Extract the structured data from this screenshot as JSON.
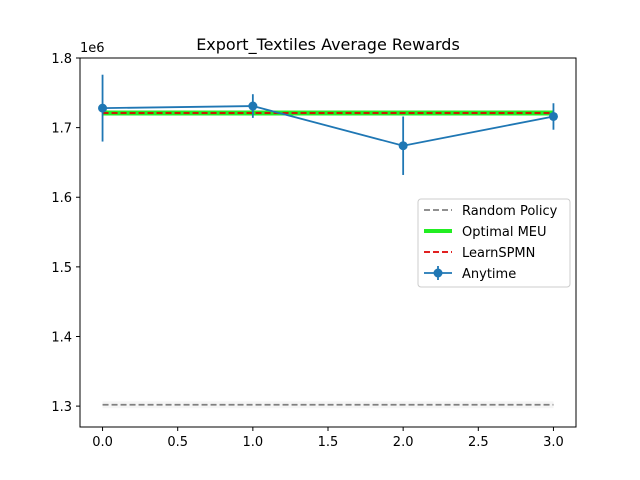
{
  "chart_data": {
    "type": "line",
    "title": "Export_Textiles Average Rewards",
    "xlabel": "",
    "ylabel": "",
    "y_offset_label": "1e6",
    "xlim": [
      -0.15,
      3.15
    ],
    "ylim": [
      1.27,
      1.8
    ],
    "x_ticks": [
      0.0,
      0.5,
      1.0,
      1.5,
      2.0,
      2.5,
      3.0
    ],
    "x_tick_labels": [
      "0.0",
      "0.5",
      "1.0",
      "1.5",
      "2.0",
      "2.5",
      "3.0"
    ],
    "y_ticks": [
      1.3,
      1.4,
      1.5,
      1.6,
      1.7,
      1.8
    ],
    "y_tick_labels": [
      "1.3",
      "1.4",
      "1.5",
      "1.6",
      "1.7",
      "1.8"
    ],
    "grid": false,
    "legend_position": "center-right",
    "series": [
      {
        "name": "Random Policy",
        "style": "dashed",
        "color": "#808080",
        "x": [
          0,
          3
        ],
        "y": [
          1.302,
          1.302
        ],
        "band": [
          1.297,
          1.307
        ]
      },
      {
        "name": "Optimal MEU",
        "style": "solid-thick",
        "color": "#22ee22",
        "x": [
          0,
          3
        ],
        "y": [
          1.721,
          1.721
        ]
      },
      {
        "name": "LearnSPMN",
        "style": "dashed",
        "color": "#dd0000",
        "x": [
          0,
          3
        ],
        "y": [
          1.721,
          1.721
        ]
      },
      {
        "name": "Anytime",
        "style": "errorbar-line",
        "color": "#1f77b4",
        "x": [
          0,
          1,
          2,
          3
        ],
        "y": [
          1.728,
          1.731,
          1.674,
          1.716
        ],
        "yerr": [
          0.048,
          0.017,
          0.042,
          0.019
        ]
      }
    ]
  }
}
